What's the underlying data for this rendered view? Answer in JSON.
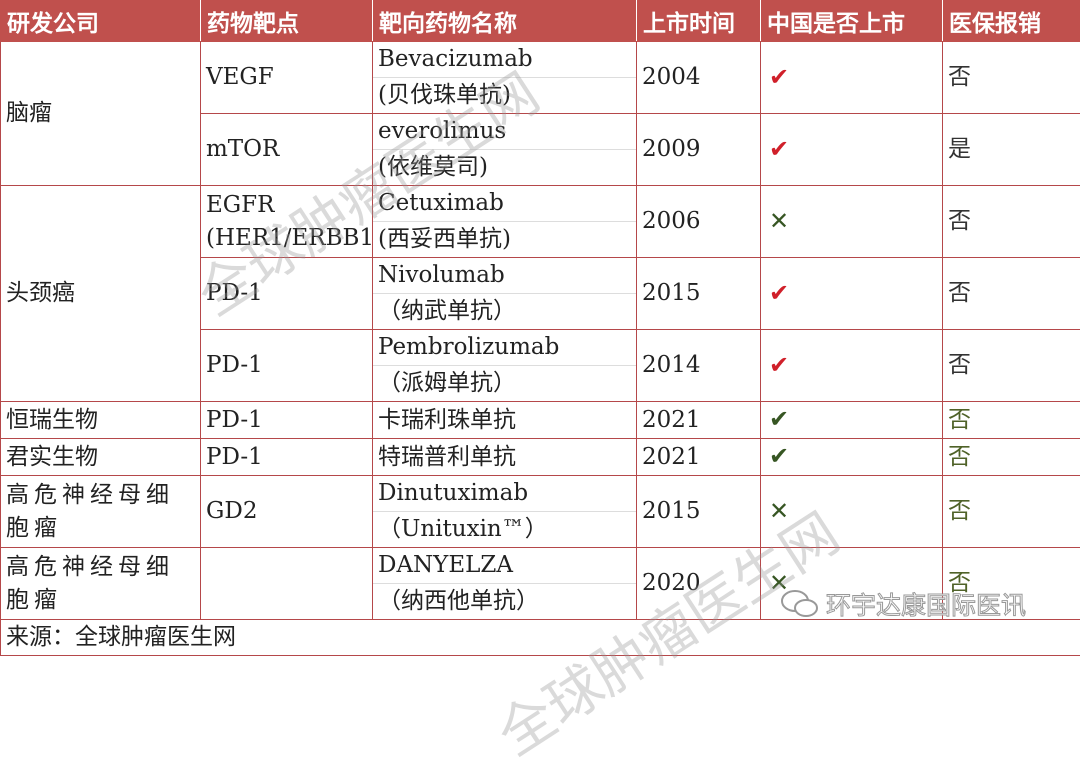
{
  "header": [
    "研发公司",
    "药物靶点",
    "靶向药物名称",
    "上市时间",
    "中国是否上市",
    "医保报销"
  ],
  "rows": [
    {
      "company": "脑瘤",
      "span": 2,
      "target": [
        "VEGF"
      ],
      "name": [
        "Bevacizumab",
        "(贝伐珠单抗)"
      ],
      "year": "2004",
      "listed": "check",
      "listed_color": "#d0202a",
      "insurance": "否",
      "ins_color": "#333333"
    },
    {
      "target": [
        "mTOR"
      ],
      "name": [
        "everolimus",
        "(依维莫司)"
      ],
      "year": "2009",
      "listed": "check",
      "listed_color": "#d0202a",
      "insurance": "是",
      "ins_color": "#333333"
    },
    {
      "company": "头颈癌",
      "span": 3,
      "target": [
        "EGFR",
        "(HER1/ERBB1"
      ],
      "name": [
        "Cetuximab",
        "(西妥西单抗)"
      ],
      "year": "2006",
      "listed": "cross",
      "listed_color": "#375623",
      "insurance": "否",
      "ins_color": "#333333"
    },
    {
      "target": [
        "PD-1"
      ],
      "name": [
        "Nivolumab",
        "（纳武单抗）"
      ],
      "year": "2015",
      "listed": "check",
      "listed_color": "#d0202a",
      "insurance": "否",
      "ins_color": "#333333"
    },
    {
      "target": [
        "PD-1"
      ],
      "name": [
        "Pembrolizumab",
        "（派姆单抗）"
      ],
      "year": "2014",
      "listed": "check",
      "listed_color": "#d0202a",
      "insurance": "否",
      "ins_color": "#333333"
    },
    {
      "company": "恒瑞生物",
      "span": 1,
      "target": [
        "PD-1"
      ],
      "name": [
        "卡瑞利珠单抗"
      ],
      "year": "2021",
      "listed": "check",
      "listed_color": "#375623",
      "insurance": "否",
      "ins_color": "#4f6228"
    },
    {
      "company": "君实生物",
      "span": 1,
      "target": [
        "PD-1"
      ],
      "name": [
        "特瑞普利单抗"
      ],
      "year": "2021",
      "listed": "check",
      "listed_color": "#375623",
      "insurance": "否",
      "ins_color": "#4f6228"
    },
    {
      "company": "高危神经母细胞瘤",
      "span": 1,
      "target": [
        "GD2"
      ],
      "name": [
        "Dinutuximab",
        "（Unituxin™）"
      ],
      "year": "2015",
      "listed": "cross",
      "listed_color": "#375623",
      "insurance": "否",
      "ins_color": "#4f6228"
    },
    {
      "company": "高危神经母细胞瘤",
      "span": 1,
      "target": [
        ""
      ],
      "name": [
        "DANYELZA",
        "（纳西他单抗）"
      ],
      "year": "2020",
      "listed": "cross",
      "listed_color": "#375623",
      "insurance": "否",
      "ins_color": "#4f6228"
    }
  ],
  "footer": "来源：全球肿瘤医生网",
  "watermark": "全球肿瘤医生网",
  "logo_text": "环宇达康国际医讯",
  "header_color": "#c0504d",
  "icons": {
    "check": "✔",
    "cross": "✕"
  }
}
